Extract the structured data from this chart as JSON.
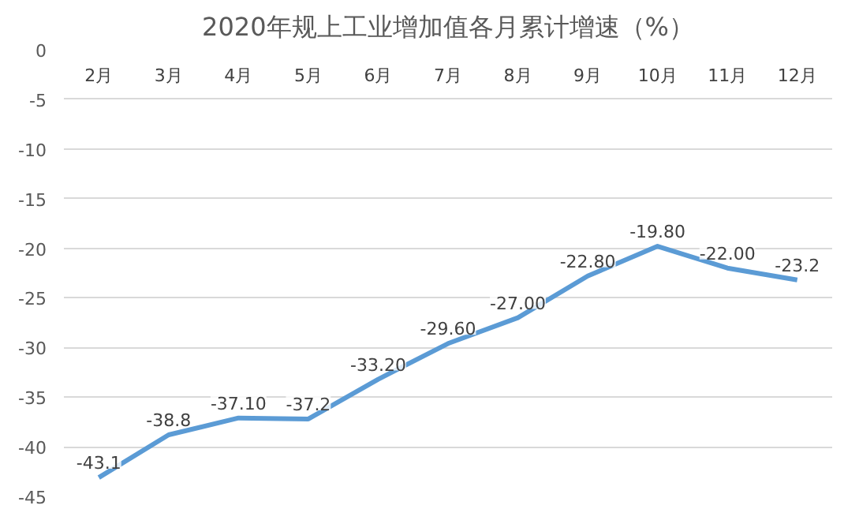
{
  "chart_data": {
    "type": "line",
    "title": "2020年规上工业增加值各月累计增速（%）",
    "categories": [
      "2月",
      "3月",
      "4月",
      "5月",
      "6月",
      "7月",
      "8月",
      "9月",
      "10月",
      "11月",
      "12月"
    ],
    "series": [
      {
        "color": "#5b9bd5",
        "values": [
          -43.1,
          -38.8,
          -37.1,
          -37.2,
          -33.2,
          -29.6,
          -27.0,
          -22.8,
          -19.8,
          -22.0,
          -23.2
        ],
        "value_labels": [
          "-43.1",
          "-38.8",
          "-37.10",
          "-37.2",
          "-33.20",
          "-29.60",
          "-27.00",
          "-22.80",
          "-19.80",
          "-22.00",
          "-23.2"
        ]
      }
    ],
    "ylim": [
      -45,
      0
    ],
    "yticks": [
      0,
      -5,
      -10,
      -15,
      -20,
      -25,
      -30,
      -35,
      -40,
      -45
    ],
    "grid": "y",
    "marker": "none",
    "line_style": "solid"
  }
}
